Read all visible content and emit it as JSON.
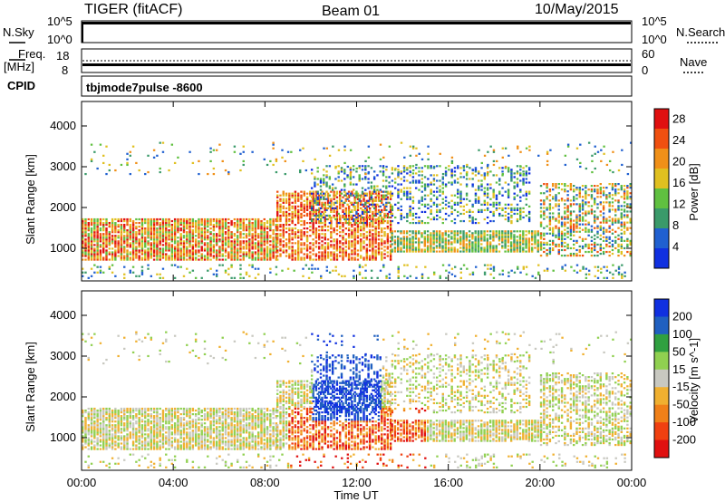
{
  "header": {
    "title": "TIGER (fitACF)",
    "beam": "Beam 01",
    "date": "10/May/2015"
  },
  "strips": {
    "nsky_label": "N.Sky",
    "nsky_ticks": [
      "10^5",
      "10^0"
    ],
    "nsearch_label": "N.Search",
    "nsearch_ticks": [
      "10^5",
      "10^0"
    ],
    "freq_label_1": "Freq.",
    "freq_label_2": "[MHz]",
    "freq_ticks": [
      "18",
      "8"
    ],
    "nave_label": "Nave",
    "nave_ticks": [
      "60",
      "0"
    ],
    "cpid_label": "CPID",
    "cpid_value": "tbjmode7pulse  -8600"
  },
  "colors": {
    "power": [
      "#1030e0",
      "#2060d0",
      "#3a9a6a",
      "#60c040",
      "#e0c020",
      "#f09018",
      "#f05010",
      "#e01010"
    ],
    "velocity": [
      "#e01010",
      "#f04010",
      "#f08018",
      "#f0b030",
      "#c8c8c0",
      "#90d050",
      "#30a040",
      "#2060c0",
      "#1030e0"
    ]
  },
  "chart_data": [
    {
      "type": "heatmap",
      "quantity": "power",
      "ylabel": "Slant Range [km]",
      "xlabel": "Time UT",
      "yticks": [
        "1000",
        "2000",
        "3000",
        "4000"
      ],
      "xticks": [
        "00:00",
        "04:00",
        "08:00",
        "12:00",
        "16:00",
        "20:00",
        "00:00"
      ],
      "ylim": [
        200,
        4600
      ],
      "xlim_hours": [
        0,
        24
      ],
      "colorbar": {
        "label": "Power [dB]",
        "ticks": [
          "4",
          "8",
          "12",
          "16",
          "20",
          "24",
          "28"
        ],
        "range": [
          0,
          30
        ]
      }
    },
    {
      "type": "heatmap",
      "quantity": "velocity",
      "ylabel": "Slant Range [km]",
      "xlabel": "Time UT",
      "yticks": [
        "1000",
        "2000",
        "3000",
        "4000"
      ],
      "xticks": [
        "00:00",
        "04:00",
        "08:00",
        "12:00",
        "16:00",
        "20:00",
        "00:00"
      ],
      "ylim": [
        200,
        4600
      ],
      "xlim_hours": [
        0,
        24
      ],
      "colorbar": {
        "label": "Velocity [m s^-1]",
        "ticks": [
          "200",
          "100",
          "50",
          "15",
          "-15",
          "-50",
          "-100",
          "-200"
        ]
      }
    }
  ]
}
